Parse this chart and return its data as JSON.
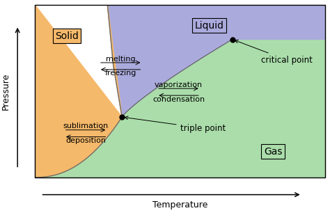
{
  "figsize": [
    4.74,
    3.06
  ],
  "dpi": 100,
  "bg_color": "#ffffff",
  "solid_color": "#f5b96b",
  "liquid_color": "#aaaadd",
  "gas_color": "#aaddaa",
  "triple_point": [
    0.3,
    0.35
  ],
  "critical_point": [
    0.68,
    0.8
  ],
  "solid_label": "Solid",
  "liquid_label": "Liquid",
  "gas_label": "Gas",
  "xlabel": "Temperature",
  "ylabel": "Pressure",
  "label_fontsize": 10,
  "annot_fontsize": 8
}
